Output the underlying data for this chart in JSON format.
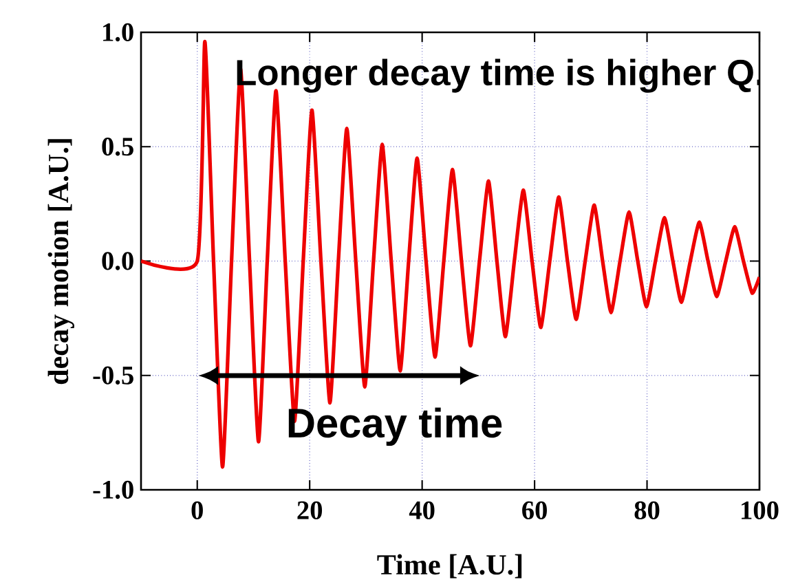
{
  "chart_data": {
    "type": "line",
    "xlabel": "Time [A.U.]",
    "ylabel": "decay motion [A.U.]",
    "annotations": [
      "Longer decay time is higher Q.",
      "Decay time"
    ],
    "series": [
      {
        "color": "#ee0000",
        "x": [
          -10,
          0,
          1.35,
          2.9,
          4.5,
          6.1,
          7.7,
          9.3,
          10.9,
          12.45,
          14.0,
          15.65,
          17.3,
          18.85,
          20.4,
          22.0,
          23.6,
          25.1,
          26.6,
          28.2,
          29.8,
          31.35,
          32.9,
          34.5,
          36.1,
          37.6,
          39.1,
          40.7,
          42.3,
          43.85,
          45.4,
          47.0,
          48.6,
          50.2,
          51.8,
          53.3,
          54.8,
          56.4,
          58.0,
          59.55,
          61.1,
          62.7,
          64.3,
          65.85,
          67.4,
          69.0,
          70.6,
          72.1,
          73.6,
          75.2,
          76.8,
          78.35,
          79.9,
          81.5,
          83.1,
          84.6,
          86.1,
          87.7,
          89.3,
          90.85,
          92.4,
          94.0,
          95.6,
          97.15,
          98.7,
          100
        ],
        "values": [
          0,
          0,
          0.96,
          0,
          -0.9,
          0,
          0.84,
          0,
          -0.79,
          0,
          0.745,
          0,
          -0.7,
          0,
          0.66,
          0,
          -0.62,
          0,
          0.58,
          0,
          -0.55,
          0,
          0.51,
          0,
          -0.48,
          0,
          0.45,
          0,
          -0.42,
          0,
          0.4,
          0,
          -0.37,
          0,
          0.35,
          0,
          -0.33,
          0,
          0.31,
          0,
          -0.29,
          0,
          0.28,
          0,
          -0.255,
          0,
          0.245,
          0,
          -0.225,
          0,
          0.215,
          0,
          -0.2,
          0,
          0.19,
          0,
          -0.18,
          0,
          0.17,
          0,
          -0.155,
          0,
          0.15,
          0,
          -0.14,
          -0.07
        ]
      }
    ],
    "xlim": [
      -10,
      100
    ],
    "ylim": [
      -1,
      1
    ],
    "xticks": [
      0,
      20,
      40,
      60,
      80,
      100
    ],
    "yticks": [
      {
        "value": -1,
        "label": "-1.0"
      },
      {
        "value": -0.5,
        "label": "-0.5"
      },
      {
        "value": 0,
        "label": "0.0"
      },
      {
        "value": 0.5,
        "label": "0.5"
      },
      {
        "value": 1,
        "label": "1.0"
      }
    ],
    "grid": true,
    "marker": "none",
    "line_style": "solid"
  }
}
